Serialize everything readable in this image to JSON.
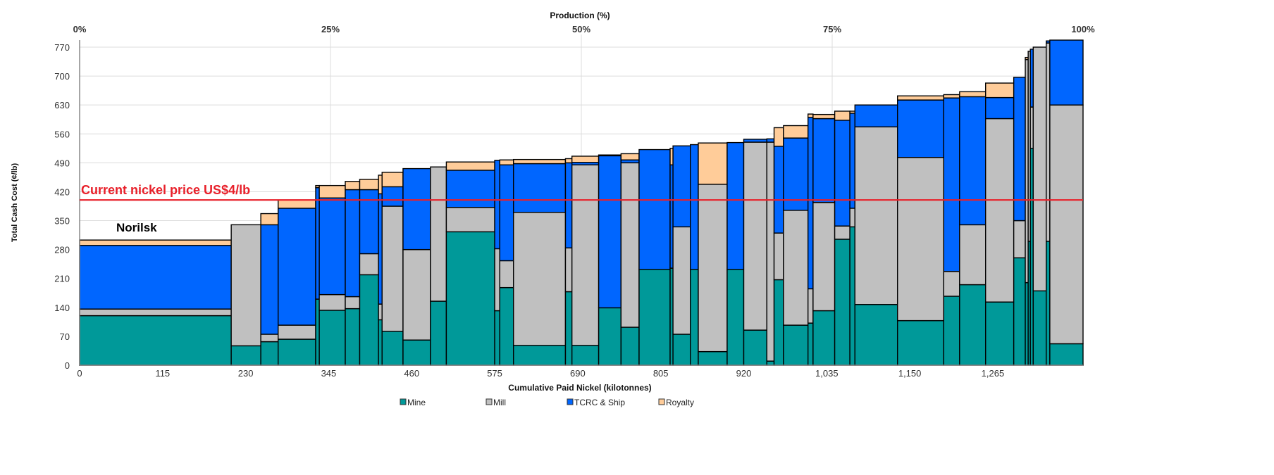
{
  "chart_data": {
    "type": "bar",
    "subtype": "stacked cost curve (variable-width bars)",
    "top_axis_title": "Production (%)",
    "top_ticks": [
      "0%",
      "25%",
      "50%",
      "75%",
      "100%"
    ],
    "xlabel": "Cumulative Paid Nickel (kilotonnes)",
    "ylabel": "Total Cash Cost (¢/lb)",
    "xlim": [
      0,
      1390
    ],
    "ylim": [
      0,
      787
    ],
    "x_ticks": [
      "0",
      "115",
      "230",
      "345",
      "460",
      "575",
      "690",
      "805",
      "920",
      "1,035",
      "1,150",
      "1,265"
    ],
    "x_tick_values": [
      0,
      115,
      230,
      345,
      460,
      575,
      690,
      805,
      920,
      1035,
      1150,
      1265
    ],
    "y_ticks": [
      "0",
      "70",
      "140",
      "210",
      "280",
      "350",
      "420",
      "490",
      "560",
      "630",
      "700",
      "770"
    ],
    "y_tick_values": [
      0,
      70,
      140,
      210,
      280,
      350,
      420,
      490,
      560,
      630,
      700,
      770
    ],
    "grid": true,
    "legend_position": "bottom",
    "series": [
      {
        "name": "Mine",
        "color": "#009999"
      },
      {
        "name": "Mill",
        "color": "#C0C0C0"
      },
      {
        "name": "TCRC & Ship",
        "color": "#0066FF"
      },
      {
        "name": "Royalty",
        "color": "#FFCC99"
      }
    ],
    "bars_fields": [
      "production_kt",
      "mine",
      "mill",
      "tcrc_ship",
      "royalty"
    ],
    "bars": [
      [
        210,
        120,
        16,
        154,
        13
      ],
      [
        41,
        47,
        293,
        0,
        0
      ],
      [
        24,
        57,
        18,
        265,
        27
      ],
      [
        52,
        63,
        34,
        283,
        20
      ],
      [
        5,
        160,
        0,
        270,
        5
      ],
      [
        36,
        133,
        38,
        234,
        30
      ],
      [
        20,
        137,
        29,
        259,
        20
      ],
      [
        26,
        219,
        51,
        155,
        25
      ],
      [
        5,
        110,
        38,
        267,
        45
      ],
      [
        29,
        82,
        303,
        47,
        35
      ],
      [
        38,
        61,
        219,
        196,
        0
      ],
      [
        22,
        155,
        325,
        0,
        0
      ],
      [
        67,
        323,
        59,
        90,
        20
      ],
      [
        7,
        132,
        150,
        214,
        0
      ],
      [
        19,
        188,
        65,
        232,
        12
      ],
      [
        72,
        48,
        322,
        118,
        10
      ],
      [
        9,
        178,
        106,
        206,
        10
      ],
      [
        37,
        48,
        437,
        6,
        15
      ],
      [
        31,
        139,
        0,
        368,
        2
      ],
      [
        25,
        92,
        398,
        7,
        15
      ],
      [
        43,
        232,
        0,
        290,
        0
      ],
      [
        4,
        235,
        0,
        250,
        40
      ],
      [
        24,
        75,
        260,
        196,
        0
      ],
      [
        11,
        232,
        0,
        302,
        0
      ],
      [
        40,
        33,
        405,
        0,
        100
      ],
      [
        23,
        232,
        0,
        307,
        0
      ],
      [
        32,
        85,
        455,
        7,
        0
      ],
      [
        10,
        10,
        530,
        8,
        0
      ],
      [
        13,
        207,
        113,
        210,
        45
      ],
      [
        34,
        97,
        278,
        175,
        30
      ],
      [
        7,
        102,
        83,
        415,
        8
      ],
      [
        30,
        132,
        262,
        203,
        10
      ],
      [
        21,
        305,
        32,
        256,
        22
      ],
      [
        7,
        335,
        45,
        230,
        5
      ],
      [
        59,
        147,
        430,
        53,
        0
      ],
      [
        64,
        108,
        395,
        139,
        10
      ],
      [
        22,
        167,
        60,
        420,
        8
      ],
      [
        36,
        195,
        145,
        310,
        12
      ],
      [
        39,
        153,
        444,
        51,
        35
      ],
      [
        16,
        260,
        90,
        347,
        0
      ],
      [
        4,
        200,
        540,
        0,
        5
      ],
      [
        3,
        300,
        460,
        0,
        0
      ],
      [
        4,
        525,
        100,
        140,
        0
      ],
      [
        18,
        180,
        590,
        0,
        0
      ],
      [
        5,
        300,
        480,
        5,
        0
      ],
      [
        46,
        52,
        578,
        170,
        0
      ]
    ],
    "reference_line": {
      "value": 400,
      "label": "Current nickel price US$4/lb",
      "color": "#e8202a"
    },
    "annotations": [
      {
        "label": "Norilsk",
        "bar_index": 0
      }
    ]
  }
}
